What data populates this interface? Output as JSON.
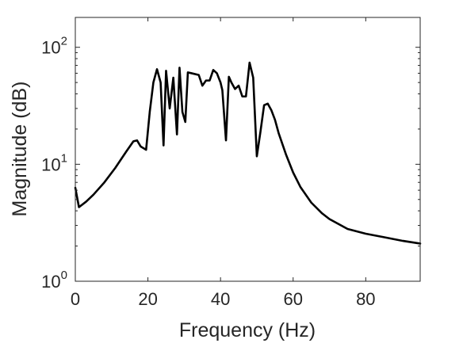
{
  "chart_data": {
    "type": "line",
    "xlabel": "Frequency (Hz)",
    "ylabel": "Magnitude (dB)",
    "xlim": [
      0,
      95
    ],
    "ylim": [
      1,
      180
    ],
    "yscale": "log",
    "grid": false,
    "x_ticks": [
      {
        "value": 0,
        "label": "0"
      },
      {
        "value": 20,
        "label": "20"
      },
      {
        "value": 40,
        "label": "40"
      },
      {
        "value": 60,
        "label": "60"
      },
      {
        "value": 80,
        "label": "80"
      }
    ],
    "y_ticks": [
      {
        "value": 1,
        "base": "10",
        "exp": "0"
      },
      {
        "value": 10,
        "base": "10",
        "exp": "1"
      },
      {
        "value": 100,
        "base": "10",
        "exp": "2"
      }
    ],
    "series": [
      {
        "color": "#000000",
        "x": [
          0,
          1,
          3,
          5,
          8,
          11,
          14,
          16,
          17,
          18,
          19.5,
          20.5,
          21.5,
          22.5,
          23.5,
          24.3,
          25,
          26,
          27,
          28,
          28.7,
          29.5,
          30.3,
          31,
          32,
          34,
          35,
          36,
          37,
          38,
          39,
          40,
          40.5,
          41.5,
          42.3,
          43,
          44,
          45,
          46,
          47,
          48,
          49,
          50,
          51,
          52,
          53,
          54,
          55,
          56,
          58,
          60,
          62,
          65,
          68,
          70,
          75,
          80,
          85,
          90,
          95
        ],
        "y": [
          6.3,
          4.3,
          4.8,
          5.5,
          7.0,
          9.3,
          12.8,
          15.7,
          16.0,
          14.2,
          13.3,
          28,
          50,
          65,
          50,
          14.5,
          63,
          30,
          55,
          18,
          67,
          28,
          23,
          61,
          60,
          58,
          47,
          52,
          52,
          64,
          60,
          50,
          43,
          16,
          56,
          50,
          44,
          47,
          38,
          38,
          74,
          55,
          11.7,
          19,
          32,
          33,
          29,
          24,
          18.5,
          12.2,
          8.5,
          6.4,
          4.7,
          3.8,
          3.4,
          2.8,
          2.55,
          2.38,
          2.22,
          2.1
        ]
      }
    ]
  }
}
